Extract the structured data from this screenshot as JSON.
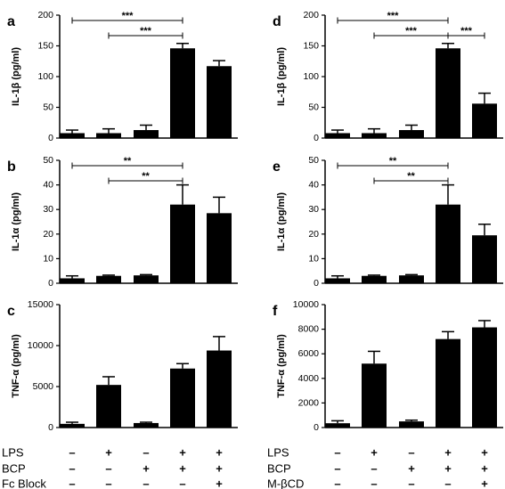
{
  "chart_data": [
    {
      "panel": "a",
      "type": "bar",
      "ylabel": "IL-1β (pg/ml)",
      "ylim": [
        0,
        200
      ],
      "yticks": [
        0,
        50,
        100,
        150,
        200
      ],
      "values": [
        8,
        8,
        13,
        146,
        117
      ],
      "errors": [
        5,
        7,
        8,
        8,
        9
      ],
      "significance": [
        {
          "from": 1,
          "to": 4,
          "label": "***"
        },
        {
          "from": 2,
          "to": 4,
          "label": "***"
        }
      ]
    },
    {
      "panel": "b",
      "type": "bar",
      "ylabel": "IL-1α (pg/ml)",
      "ylim": [
        0,
        50
      ],
      "yticks": [
        0,
        10,
        20,
        30,
        40,
        50
      ],
      "values": [
        2,
        3,
        3.2,
        32,
        28.5
      ],
      "errors": [
        1,
        0.3,
        0.3,
        8,
        6.5
      ],
      "significance": [
        {
          "from": 1,
          "to": 4,
          "label": "**"
        },
        {
          "from": 2,
          "to": 4,
          "label": "**"
        }
      ]
    },
    {
      "panel": "c",
      "type": "bar",
      "ylabel": "TNF-α (pg/ml)",
      "ylim": [
        0,
        15000
      ],
      "yticks": [
        0,
        5000,
        10000,
        15000
      ],
      "values": [
        450,
        5200,
        550,
        7200,
        9400
      ],
      "errors": [
        200,
        1000,
        100,
        600,
        1700
      ],
      "significance": []
    },
    {
      "panel": "d",
      "type": "bar",
      "ylabel": "IL-1β (pg/ml)",
      "ylim": [
        0,
        200
      ],
      "yticks": [
        0,
        50,
        100,
        150,
        200
      ],
      "values": [
        8,
        8,
        13,
        146,
        56
      ],
      "errors": [
        5,
        7,
        8,
        8,
        17
      ],
      "significance": [
        {
          "from": 1,
          "to": 4,
          "label": "***"
        },
        {
          "from": 2,
          "to": 4,
          "label": "***"
        },
        {
          "from": 4,
          "to": 5,
          "label": "***"
        }
      ]
    },
    {
      "panel": "e",
      "type": "bar",
      "ylabel": "IL-1α (pg/ml)",
      "ylim": [
        0,
        50
      ],
      "yticks": [
        0,
        10,
        20,
        30,
        40,
        50
      ],
      "values": [
        2,
        3,
        3.2,
        32,
        19.5
      ],
      "errors": [
        1,
        0.3,
        0.3,
        8,
        4.5
      ],
      "significance": [
        {
          "from": 1,
          "to": 4,
          "label": "**"
        },
        {
          "from": 2,
          "to": 4,
          "label": "**"
        }
      ]
    },
    {
      "panel": "f",
      "type": "bar",
      "ylabel": "TNF-α (pg/ml)",
      "ylim": [
        0,
        10000
      ],
      "yticks": [
        0,
        2000,
        4000,
        6000,
        8000,
        10000
      ],
      "values": [
        350,
        5200,
        500,
        7200,
        8150
      ],
      "errors": [
        200,
        1000,
        100,
        600,
        550
      ],
      "significance": []
    }
  ],
  "conditions": {
    "left": {
      "rows": [
        {
          "label": "LPS",
          "marks": [
            "–",
            "+",
            "–",
            "+",
            "+"
          ]
        },
        {
          "label": "BCP",
          "marks": [
            "–",
            "–",
            "+",
            "+",
            "+"
          ]
        },
        {
          "label": "Fc Block",
          "marks": [
            "–",
            "–",
            "–",
            "–",
            "+"
          ]
        }
      ]
    },
    "right": {
      "rows": [
        {
          "label": "LPS",
          "marks": [
            "–",
            "+",
            "–",
            "+",
            "+"
          ]
        },
        {
          "label": "BCP",
          "marks": [
            "–",
            "–",
            "+",
            "+",
            "+"
          ]
        },
        {
          "label": "M-βCD",
          "marks": [
            "–",
            "–",
            "–",
            "–",
            "+"
          ]
        }
      ]
    }
  },
  "colors": {
    "bar": "#000000",
    "axis": "#000000",
    "background": "#ffffff"
  }
}
